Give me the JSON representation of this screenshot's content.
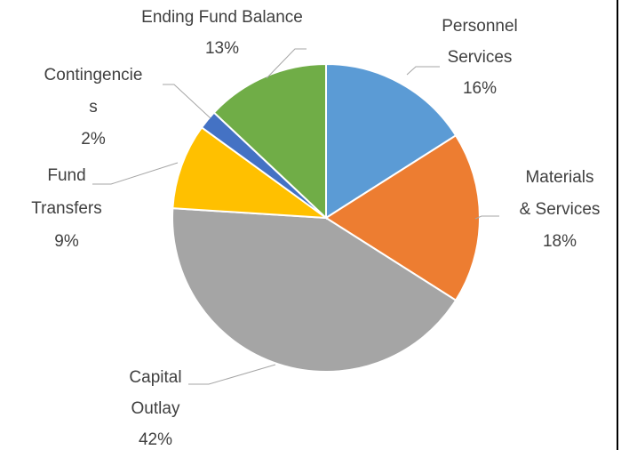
{
  "chart_data": {
    "type": "pie",
    "categories": [
      "Personnel Services",
      "Materials & Services",
      "Capital Outlay",
      "Fund Transfers",
      "Contingencies",
      "Ending Fund Balance"
    ],
    "values": [
      16,
      18,
      42,
      9,
      2,
      13
    ],
    "value_labels": [
      "16%",
      "18%",
      "42%",
      "9%",
      "2%",
      "13%"
    ],
    "colors": [
      "#5b9bd5",
      "#ed7d31",
      "#a5a5a5",
      "#ffc000",
      "#4472c4",
      "#70ad47"
    ]
  }
}
